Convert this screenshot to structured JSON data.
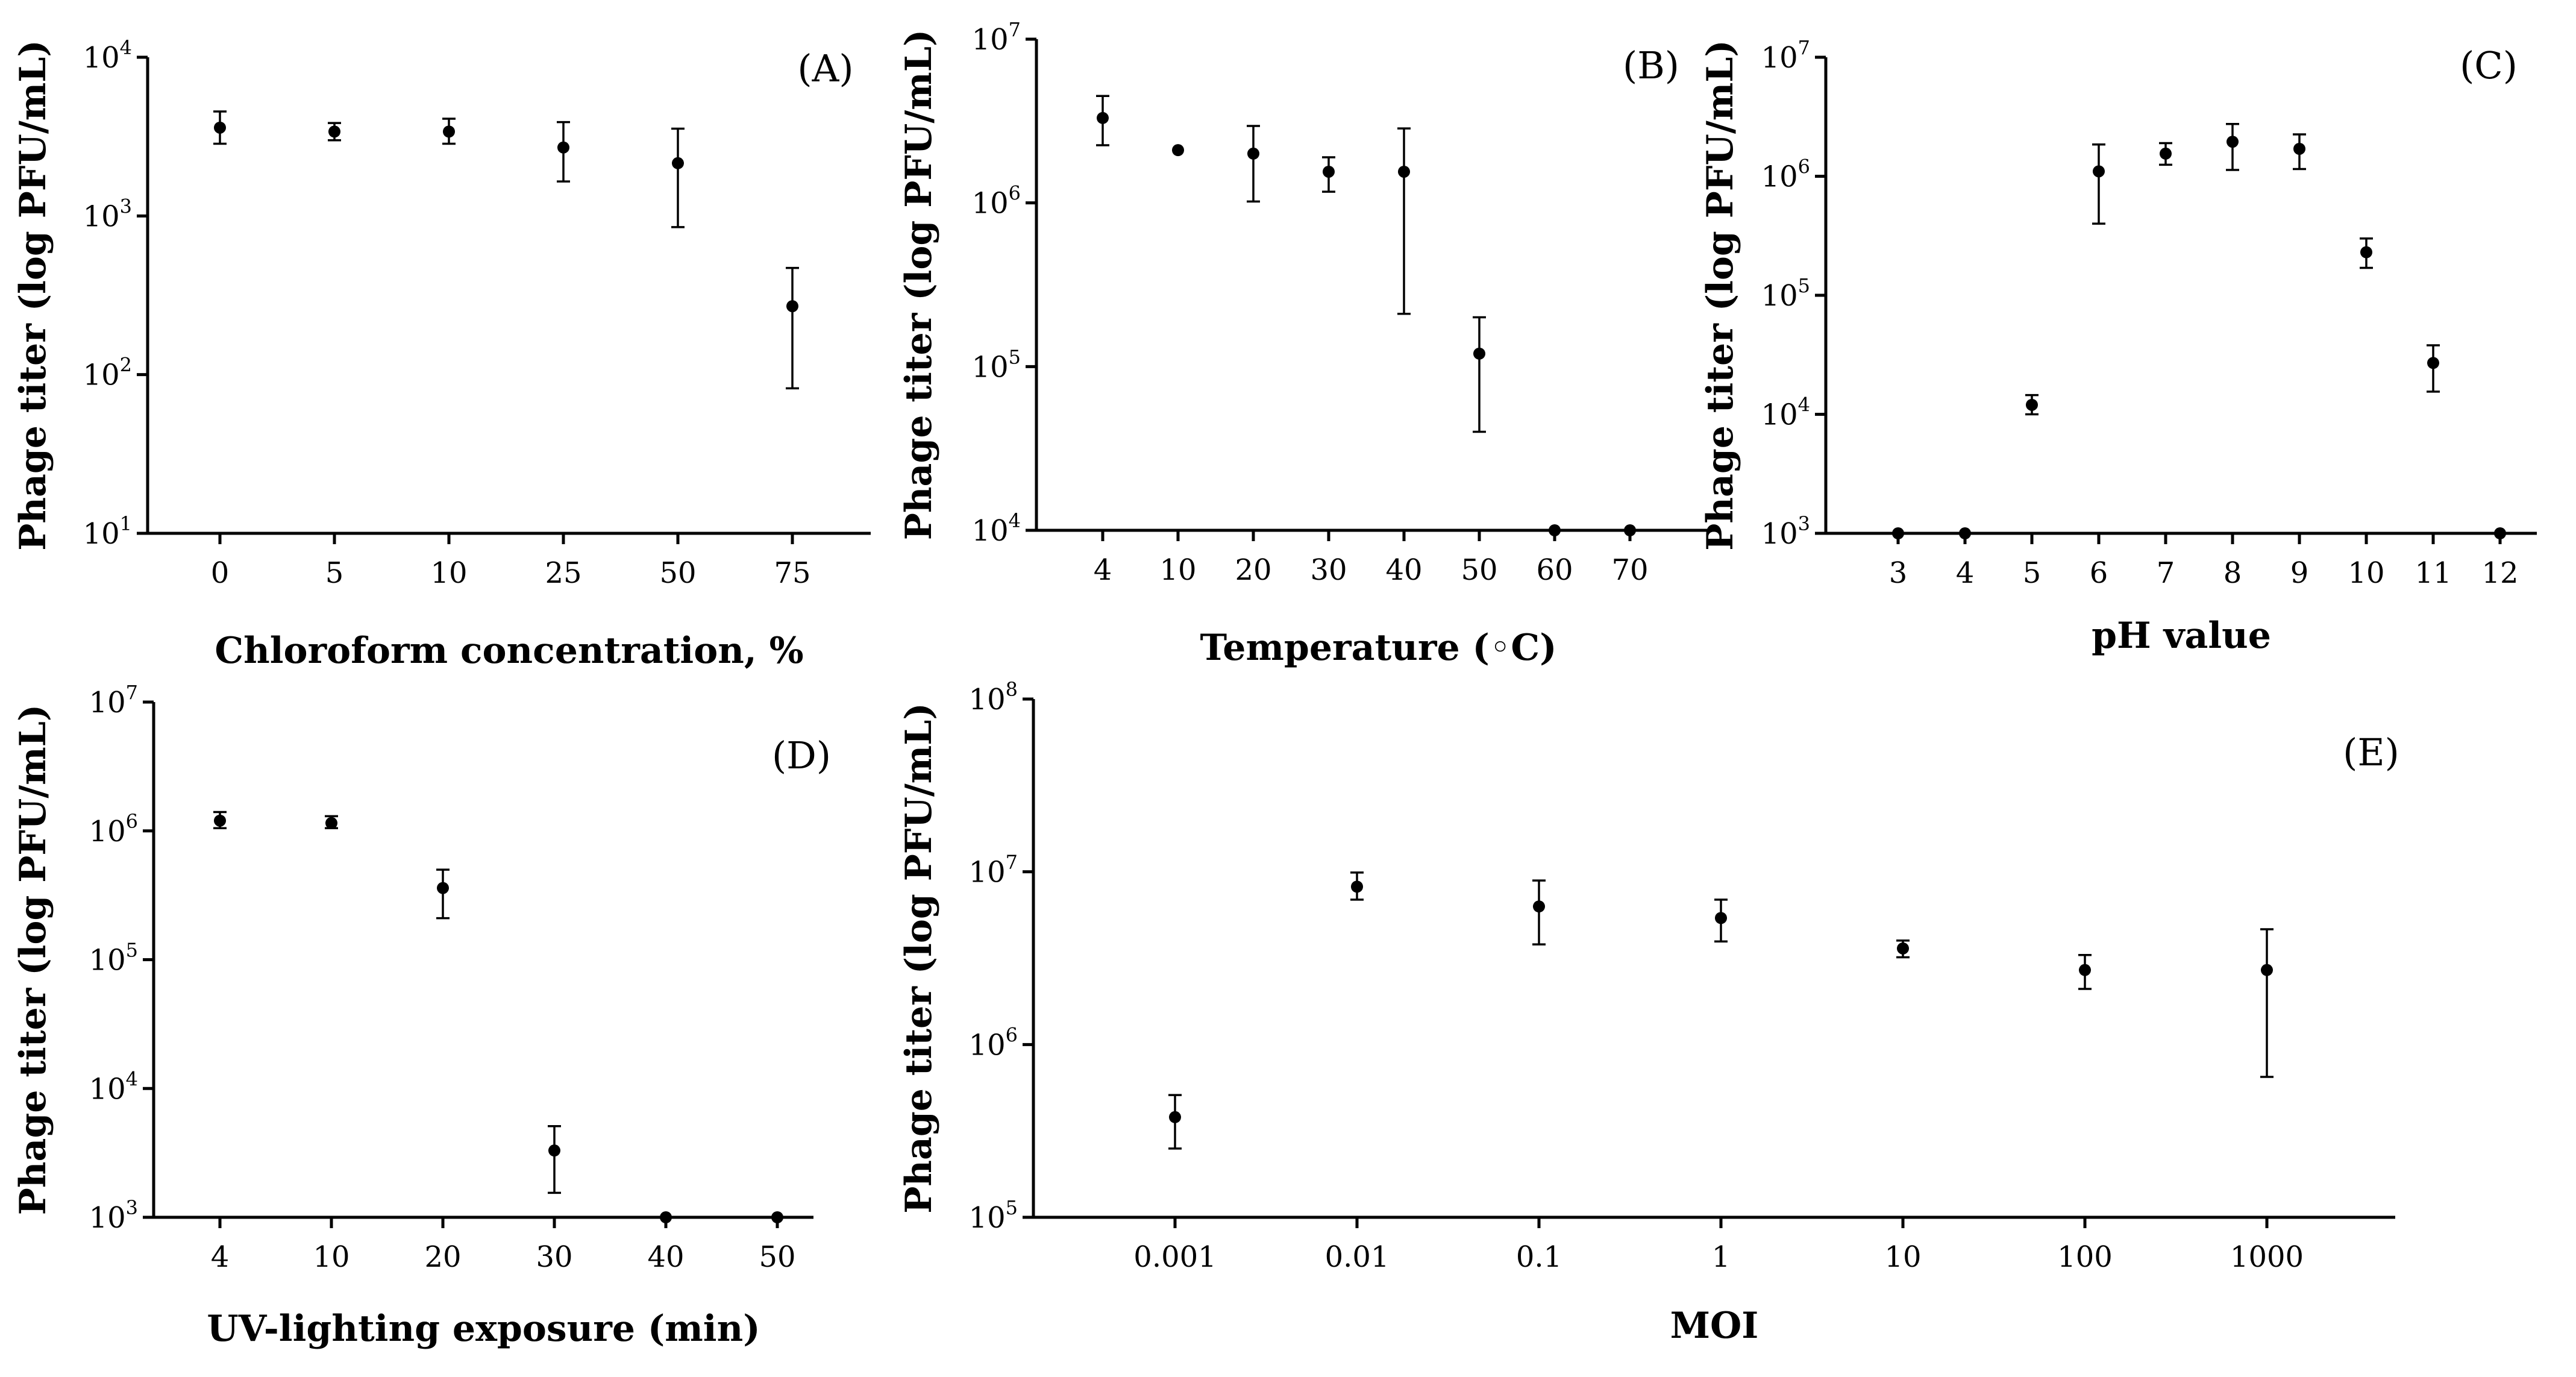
{
  "chart_data": [
    {
      "panel": "(A)",
      "type": "scatter",
      "y_scale": "log",
      "xlabel": "Chloroform concentration, %",
      "ylabel": "Phage titer (log PFU/mL)",
      "ylim": [
        10,
        10000
      ],
      "y_ticks": [
        {
          "base": "10",
          "exp": "1"
        },
        {
          "base": "10",
          "exp": "2"
        },
        {
          "base": "10",
          "exp": "3"
        },
        {
          "base": "10",
          "exp": "4"
        }
      ],
      "categories": [
        "0",
        "5",
        "10",
        "25",
        "50",
        "75"
      ],
      "values": [
        3600,
        3400,
        3400,
        2700,
        2150,
        270
      ],
      "err_low": [
        2850,
        3000,
        2850,
        1650,
        850,
        82
      ],
      "err_high": [
        4550,
        3850,
        4100,
        3900,
        3550,
        470
      ]
    },
    {
      "panel": "(B)",
      "type": "scatter",
      "y_scale": "log",
      "xlabel": "Temperature (◦C)",
      "ylabel": "Phage titer (log PFU/mL)",
      "ylim": [
        10000,
        10000000
      ],
      "y_ticks": [
        {
          "base": "10",
          "exp": "4"
        },
        {
          "base": "10",
          "exp": "5"
        },
        {
          "base": "10",
          "exp": "6"
        },
        {
          "base": "10",
          "exp": "7"
        }
      ],
      "categories": [
        "4",
        "10",
        "20",
        "30",
        "40",
        "50",
        "60",
        "70"
      ],
      "values": [
        3300000,
        2100000,
        2000000,
        1550000,
        1550000,
        120000,
        10000,
        10000
      ],
      "err_low": [
        2250000,
        2100000,
        1020000,
        1170000,
        210000,
        40000,
        10000,
        10000
      ],
      "err_high": [
        4500000,
        2100000,
        2950000,
        1900000,
        2850000,
        200000,
        10000,
        10000
      ]
    },
    {
      "panel": "(C)",
      "type": "scatter",
      "y_scale": "log",
      "xlabel": "pH value",
      "ylabel": "Phage titer (log PFU/mL)",
      "ylim": [
        1000,
        10000000
      ],
      "y_ticks": [
        {
          "base": "10",
          "exp": "3"
        },
        {
          "base": "10",
          "exp": "4"
        },
        {
          "base": "10",
          "exp": "5"
        },
        {
          "base": "10",
          "exp": "6"
        },
        {
          "base": "10",
          "exp": "7"
        }
      ],
      "categories": [
        "3",
        "4",
        "5",
        "6",
        "7",
        "8",
        "9",
        "10",
        "11",
        "12"
      ],
      "values": [
        1000,
        1000,
        12000,
        1100000,
        1550000,
        1950000,
        1700000,
        230000,
        27000,
        1000
      ],
      "err_low": [
        1000,
        1000,
        10000,
        400000,
        1250000,
        1130000,
        1150000,
        170000,
        15500,
        1000
      ],
      "err_high": [
        1000,
        1000,
        14500,
        1850000,
        1900000,
        2750000,
        2250000,
        300000,
        38000,
        1000
      ]
    },
    {
      "panel": "(D)",
      "type": "scatter",
      "y_scale": "log",
      "xlabel": "UV-lighting exposure (min)",
      "ylabel": "Phage titer (log PFU/mL)",
      "ylim": [
        1000,
        10000000
      ],
      "y_ticks": [
        {
          "base": "10",
          "exp": "3"
        },
        {
          "base": "10",
          "exp": "4"
        },
        {
          "base": "10",
          "exp": "5"
        },
        {
          "base": "10",
          "exp": "6"
        },
        {
          "base": "10",
          "exp": "7"
        }
      ],
      "categories": [
        "4",
        "10",
        "20",
        "30",
        "40",
        "50"
      ],
      "values": [
        1200000,
        1150000,
        360000,
        3300,
        1000,
        1000
      ],
      "err_low": [
        1050000,
        1050000,
        210000,
        1550,
        1000,
        1000
      ],
      "err_high": [
        1400000,
        1300000,
        500000,
        5100,
        1000,
        1000
      ]
    },
    {
      "panel": "(E)",
      "type": "scatter",
      "y_scale": "log",
      "xlabel": "MOI",
      "ylabel": "Phage titer (log PFU/mL)",
      "ylim": [
        100000,
        100000000
      ],
      "y_ticks": [
        {
          "base": "10",
          "exp": "5"
        },
        {
          "base": "10",
          "exp": "6"
        },
        {
          "base": "10",
          "exp": "7"
        },
        {
          "base": "10",
          "exp": "8"
        }
      ],
      "categories": [
        "0.001",
        "0.01",
        "0.1",
        "1",
        "10",
        "100",
        "1000"
      ],
      "values": [
        380000,
        8200000,
        6300000,
        5400000,
        3600000,
        2700000,
        2700000
      ],
      "err_low": [
        250000,
        6900000,
        3800000,
        3950000,
        3200000,
        2100000,
        650000
      ],
      "err_high": [
        510000,
        9900000,
        8900000,
        6900000,
        4000000,
        3300000,
        4650000
      ]
    }
  ]
}
